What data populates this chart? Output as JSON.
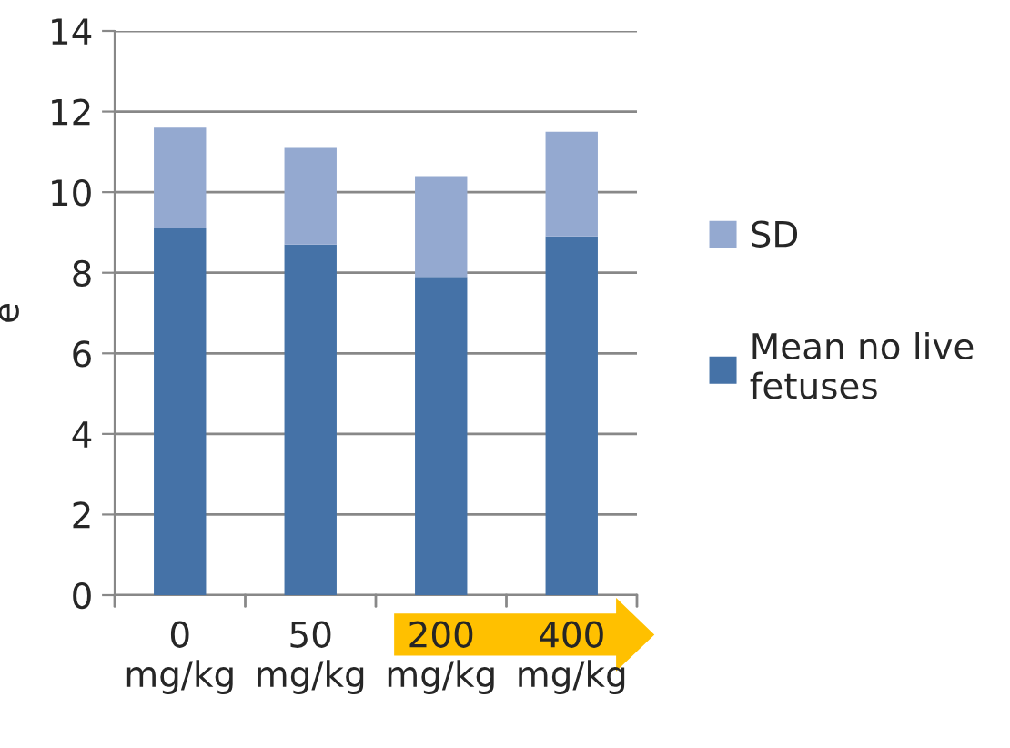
{
  "chart_data": {
    "type": "bar",
    "ylabel": "e",
    "categories": [
      "0\nmg/kg",
      "50\nmg/kg",
      "200\nmg/kg",
      "400\nmg/kg"
    ],
    "series": [
      {
        "name": "Mean no live\nfetuses",
        "color": "#4572a7",
        "values": [
          9.1,
          8.7,
          7.9,
          8.9
        ]
      },
      {
        "name": "SD",
        "color": "#94a9d0",
        "values": [
          2.5,
          2.4,
          2.5,
          2.6
        ]
      }
    ],
    "stacked": true,
    "ylim": [
      0,
      14
    ],
    "yticks": [
      0,
      2,
      4,
      6,
      8,
      10,
      12,
      14
    ],
    "grid": "y",
    "legend": "right"
  }
}
